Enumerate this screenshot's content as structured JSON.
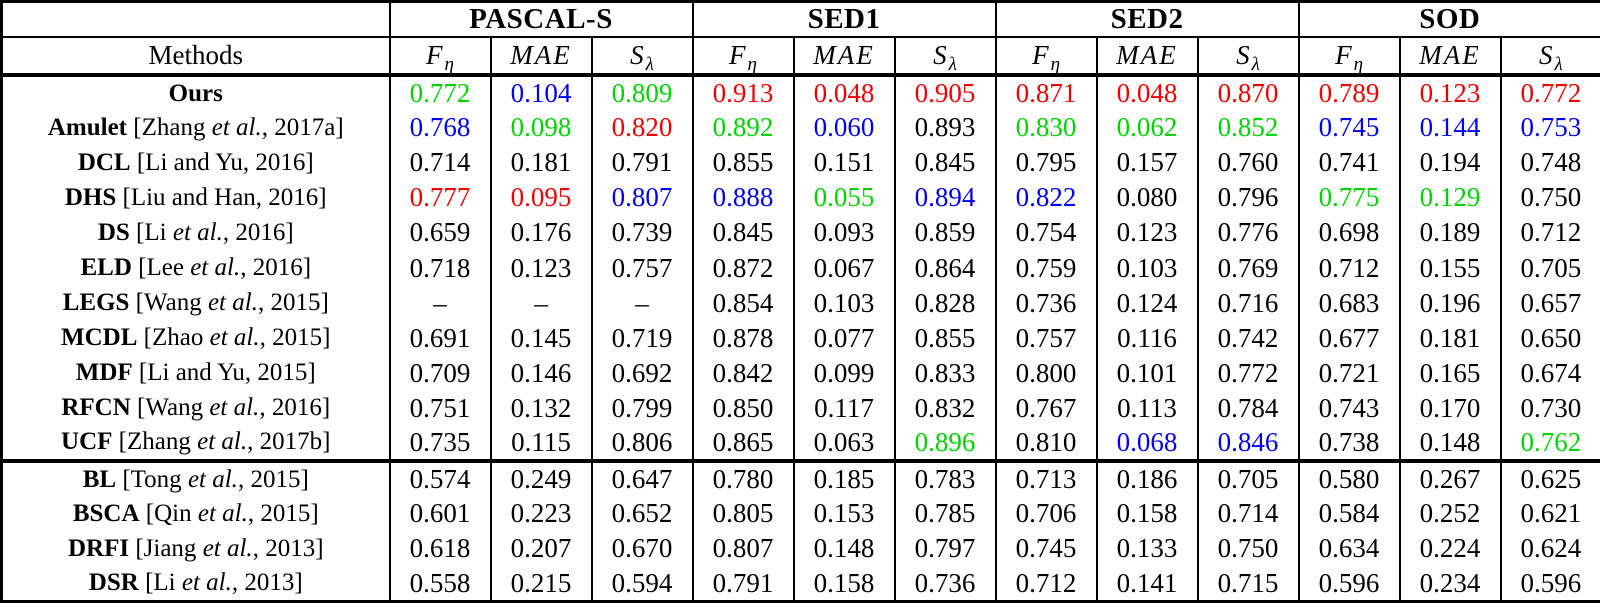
{
  "table": {
    "corner_label": "",
    "methods_label": "Methods",
    "datasets": [
      "PASCAL-S",
      "SED1",
      "SED2",
      "SOD"
    ],
    "metrics": [
      {
        "base": "F",
        "sub": "η"
      },
      {
        "base": "MAE",
        "sub": ""
      },
      {
        "base": "S",
        "sub": "λ"
      }
    ],
    "value_colors": {
      "r": "#ee0000",
      "g": "#00d400",
      "b": "#0000ee",
      "k": "#000000"
    },
    "rows": [
      {
        "method": "Ours",
        "cite_parts": [],
        "values": [
          [
            "0.772",
            "g"
          ],
          [
            "0.104",
            "b"
          ],
          [
            "0.809",
            "g"
          ],
          [
            "0.913",
            "r"
          ],
          [
            "0.048",
            "r"
          ],
          [
            "0.905",
            "r"
          ],
          [
            "0.871",
            "r"
          ],
          [
            "0.048",
            "r"
          ],
          [
            "0.870",
            "r"
          ],
          [
            "0.789",
            "r"
          ],
          [
            "0.123",
            "r"
          ],
          [
            "0.772",
            "r"
          ]
        ]
      },
      {
        "method": "Amulet",
        "cite_parts": [
          [
            "[Zhang ",
            "n"
          ],
          [
            "et al.",
            "i"
          ],
          [
            ", 2017a]",
            "n"
          ]
        ],
        "values": [
          [
            "0.768",
            "b"
          ],
          [
            "0.098",
            "g"
          ],
          [
            "0.820",
            "r"
          ],
          [
            "0.892",
            "g"
          ],
          [
            "0.060",
            "b"
          ],
          [
            "0.893",
            "k"
          ],
          [
            "0.830",
            "g"
          ],
          [
            "0.062",
            "g"
          ],
          [
            "0.852",
            "g"
          ],
          [
            "0.745",
            "b"
          ],
          [
            "0.144",
            "b"
          ],
          [
            "0.753",
            "b"
          ]
        ]
      },
      {
        "method": "DCL",
        "cite_parts": [
          [
            "[Li and Yu, 2016]",
            "n"
          ]
        ],
        "values": [
          [
            "0.714",
            "k"
          ],
          [
            "0.181",
            "k"
          ],
          [
            "0.791",
            "k"
          ],
          [
            "0.855",
            "k"
          ],
          [
            "0.151",
            "k"
          ],
          [
            "0.845",
            "k"
          ],
          [
            "0.795",
            "k"
          ],
          [
            "0.157",
            "k"
          ],
          [
            "0.760",
            "k"
          ],
          [
            "0.741",
            "k"
          ],
          [
            "0.194",
            "k"
          ],
          [
            "0.748",
            "k"
          ]
        ]
      },
      {
        "method": "DHS",
        "cite_parts": [
          [
            "[Liu and Han, 2016]",
            "n"
          ]
        ],
        "values": [
          [
            "0.777",
            "r"
          ],
          [
            "0.095",
            "r"
          ],
          [
            "0.807",
            "b"
          ],
          [
            "0.888",
            "b"
          ],
          [
            "0.055",
            "g"
          ],
          [
            "0.894",
            "b"
          ],
          [
            "0.822",
            "b"
          ],
          [
            "0.080",
            "k"
          ],
          [
            "0.796",
            "k"
          ],
          [
            "0.775",
            "g"
          ],
          [
            "0.129",
            "g"
          ],
          [
            "0.750",
            "k"
          ]
        ]
      },
      {
        "method": "DS",
        "cite_parts": [
          [
            "[Li ",
            "n"
          ],
          [
            "et al.",
            "i"
          ],
          [
            ", 2016]",
            "n"
          ]
        ],
        "values": [
          [
            "0.659",
            "k"
          ],
          [
            "0.176",
            "k"
          ],
          [
            "0.739",
            "k"
          ],
          [
            "0.845",
            "k"
          ],
          [
            "0.093",
            "k"
          ],
          [
            "0.859",
            "k"
          ],
          [
            "0.754",
            "k"
          ],
          [
            "0.123",
            "k"
          ],
          [
            "0.776",
            "k"
          ],
          [
            "0.698",
            "k"
          ],
          [
            "0.189",
            "k"
          ],
          [
            "0.712",
            "k"
          ]
        ]
      },
      {
        "method": "ELD",
        "cite_parts": [
          [
            "[Lee ",
            "n"
          ],
          [
            "et al.",
            "i"
          ],
          [
            ", 2016]",
            "n"
          ]
        ],
        "values": [
          [
            "0.718",
            "k"
          ],
          [
            "0.123",
            "k"
          ],
          [
            "0.757",
            "k"
          ],
          [
            "0.872",
            "k"
          ],
          [
            "0.067",
            "k"
          ],
          [
            "0.864",
            "k"
          ],
          [
            "0.759",
            "k"
          ],
          [
            "0.103",
            "k"
          ],
          [
            "0.769",
            "k"
          ],
          [
            "0.712",
            "k"
          ],
          [
            "0.155",
            "k"
          ],
          [
            "0.705",
            "k"
          ]
        ]
      },
      {
        "method": "LEGS",
        "cite_parts": [
          [
            "[Wang ",
            "n"
          ],
          [
            "et al.",
            "i"
          ],
          [
            ", 2015]",
            "n"
          ]
        ],
        "values": [
          [
            "–",
            "k"
          ],
          [
            "–",
            "k"
          ],
          [
            "–",
            "k"
          ],
          [
            "0.854",
            "k"
          ],
          [
            "0.103",
            "k"
          ],
          [
            "0.828",
            "k"
          ],
          [
            "0.736",
            "k"
          ],
          [
            "0.124",
            "k"
          ],
          [
            "0.716",
            "k"
          ],
          [
            "0.683",
            "k"
          ],
          [
            "0.196",
            "k"
          ],
          [
            "0.657",
            "k"
          ]
        ]
      },
      {
        "method": "MCDL",
        "cite_parts": [
          [
            "[Zhao ",
            "n"
          ],
          [
            "et al.",
            "i"
          ],
          [
            ", 2015]",
            "n"
          ]
        ],
        "values": [
          [
            "0.691",
            "k"
          ],
          [
            "0.145",
            "k"
          ],
          [
            "0.719",
            "k"
          ],
          [
            "0.878",
            "k"
          ],
          [
            "0.077",
            "k"
          ],
          [
            "0.855",
            "k"
          ],
          [
            "0.757",
            "k"
          ],
          [
            "0.116",
            "k"
          ],
          [
            "0.742",
            "k"
          ],
          [
            "0.677",
            "k"
          ],
          [
            "0.181",
            "k"
          ],
          [
            "0.650",
            "k"
          ]
        ]
      },
      {
        "method": "MDF",
        "cite_parts": [
          [
            "[Li and Yu, 2015]",
            "n"
          ]
        ],
        "values": [
          [
            "0.709",
            "k"
          ],
          [
            "0.146",
            "k"
          ],
          [
            "0.692",
            "k"
          ],
          [
            "0.842",
            "k"
          ],
          [
            "0.099",
            "k"
          ],
          [
            "0.833",
            "k"
          ],
          [
            "0.800",
            "k"
          ],
          [
            "0.101",
            "k"
          ],
          [
            "0.772",
            "k"
          ],
          [
            "0.721",
            "k"
          ],
          [
            "0.165",
            "k"
          ],
          [
            "0.674",
            "k"
          ]
        ]
      },
      {
        "method": "RFCN",
        "cite_parts": [
          [
            "[Wang ",
            "n"
          ],
          [
            "et al.",
            "i"
          ],
          [
            ", 2016]",
            "n"
          ]
        ],
        "values": [
          [
            "0.751",
            "k"
          ],
          [
            "0.132",
            "k"
          ],
          [
            "0.799",
            "k"
          ],
          [
            "0.850",
            "k"
          ],
          [
            "0.117",
            "k"
          ],
          [
            "0.832",
            "k"
          ],
          [
            "0.767",
            "k"
          ],
          [
            "0.113",
            "k"
          ],
          [
            "0.784",
            "k"
          ],
          [
            "0.743",
            "k"
          ],
          [
            "0.170",
            "k"
          ],
          [
            "0.730",
            "k"
          ]
        ]
      },
      {
        "method": "UCF",
        "cite_parts": [
          [
            "[Zhang ",
            "n"
          ],
          [
            "et al.",
            "i"
          ],
          [
            ", 2017b]",
            "n"
          ]
        ],
        "values": [
          [
            "0.735",
            "k"
          ],
          [
            "0.115",
            "k"
          ],
          [
            "0.806",
            "k"
          ],
          [
            "0.865",
            "k"
          ],
          [
            "0.063",
            "k"
          ],
          [
            "0.896",
            "g"
          ],
          [
            "0.810",
            "k"
          ],
          [
            "0.068",
            "b"
          ],
          [
            "0.846",
            "b"
          ],
          [
            "0.738",
            "k"
          ],
          [
            "0.148",
            "k"
          ],
          [
            "0.762",
            "g"
          ]
        ]
      },
      {
        "method": "BL",
        "group_sep": true,
        "cite_parts": [
          [
            "[Tong ",
            "n"
          ],
          [
            "et al.",
            "i"
          ],
          [
            ", 2015]",
            "n"
          ]
        ],
        "values": [
          [
            "0.574",
            "k"
          ],
          [
            "0.249",
            "k"
          ],
          [
            "0.647",
            "k"
          ],
          [
            "0.780",
            "k"
          ],
          [
            "0.185",
            "k"
          ],
          [
            "0.783",
            "k"
          ],
          [
            "0.713",
            "k"
          ],
          [
            "0.186",
            "k"
          ],
          [
            "0.705",
            "k"
          ],
          [
            "0.580",
            "k"
          ],
          [
            "0.267",
            "k"
          ],
          [
            "0.625",
            "k"
          ]
        ]
      },
      {
        "method": "BSCA",
        "cite_parts": [
          [
            "[Qin ",
            "n"
          ],
          [
            "et al.",
            "i"
          ],
          [
            ", 2015]",
            "n"
          ]
        ],
        "values": [
          [
            "0.601",
            "k"
          ],
          [
            "0.223",
            "k"
          ],
          [
            "0.652",
            "k"
          ],
          [
            "0.805",
            "k"
          ],
          [
            "0.153",
            "k"
          ],
          [
            "0.785",
            "k"
          ],
          [
            "0.706",
            "k"
          ],
          [
            "0.158",
            "k"
          ],
          [
            "0.714",
            "k"
          ],
          [
            "0.584",
            "k"
          ],
          [
            "0.252",
            "k"
          ],
          [
            "0.621",
            "k"
          ]
        ]
      },
      {
        "method": "DRFI",
        "cite_parts": [
          [
            "[Jiang ",
            "n"
          ],
          [
            "et al.",
            "i"
          ],
          [
            ", 2013]",
            "n"
          ]
        ],
        "values": [
          [
            "0.618",
            "k"
          ],
          [
            "0.207",
            "k"
          ],
          [
            "0.670",
            "k"
          ],
          [
            "0.807",
            "k"
          ],
          [
            "0.148",
            "k"
          ],
          [
            "0.797",
            "k"
          ],
          [
            "0.745",
            "k"
          ],
          [
            "0.133",
            "k"
          ],
          [
            "0.750",
            "k"
          ],
          [
            "0.634",
            "k"
          ],
          [
            "0.224",
            "k"
          ],
          [
            "0.624",
            "k"
          ]
        ]
      },
      {
        "method": "DSR",
        "cite_parts": [
          [
            "[Li ",
            "n"
          ],
          [
            "et al.",
            "i"
          ],
          [
            ", 2013]",
            "n"
          ]
        ],
        "values": [
          [
            "0.558",
            "k"
          ],
          [
            "0.215",
            "k"
          ],
          [
            "0.594",
            "k"
          ],
          [
            "0.791",
            "k"
          ],
          [
            "0.158",
            "k"
          ],
          [
            "0.736",
            "k"
          ],
          [
            "0.712",
            "k"
          ],
          [
            "0.141",
            "k"
          ],
          [
            "0.715",
            "k"
          ],
          [
            "0.596",
            "k"
          ],
          [
            "0.234",
            "k"
          ],
          [
            "0.596",
            "k"
          ]
        ]
      }
    ]
  }
}
